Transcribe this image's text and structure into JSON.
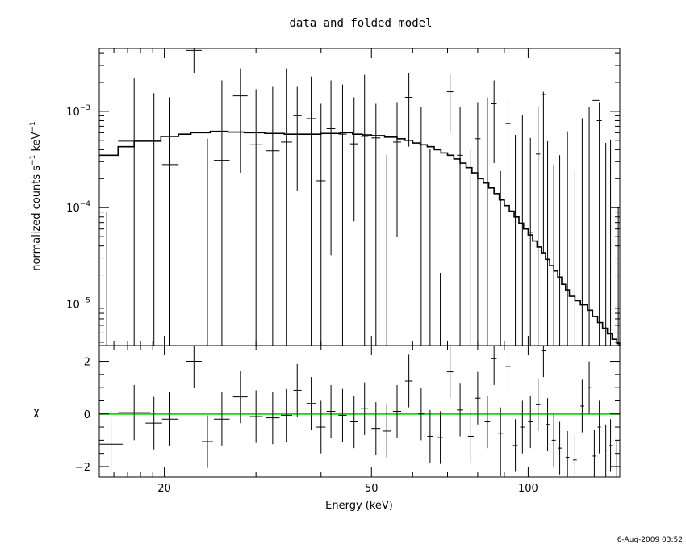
{
  "chart_data": [
    {
      "type": "scatter",
      "panel": "spectrum",
      "title": "data and folded model",
      "ylabel_main": "normalized counts s",
      "ylabel_sup1": "−1",
      "ylabel_mid": " keV",
      "ylabel_sup2": "−1",
      "yscale": "log",
      "ylim": [
        3.7e-06,
        0.0045
      ],
      "xlim": [
        15,
        150
      ],
      "xscale": "log",
      "yticks": [
        {
          "value": 1e-05,
          "base": "10",
          "exp": "−5"
        },
        {
          "value": 0.0001,
          "base": "10",
          "exp": "−4"
        },
        {
          "value": 0.001,
          "base": "10",
          "exp": "−3"
        }
      ],
      "data": [
        {
          "x": 15.5,
          "y": 3.7e-06,
          "xlo": 15.5,
          "xhi": 15.5,
          "yhi": 9e-05
        },
        {
          "x": 17.5,
          "y": 0.00049,
          "xlo": 16.3,
          "xhi": 18.8,
          "yhi": 0.0022
        },
        {
          "x": 19.1,
          "y": 3.7e-06,
          "xlo": 19.1,
          "xhi": 19.1,
          "yhi": 0.00155
        },
        {
          "x": 20.5,
          "y": 0.00028,
          "xlo": 19.8,
          "xhi": 21.3,
          "yhi": 0.0014
        },
        {
          "x": 22.8,
          "y": 0.0043,
          "xlo": 22.0,
          "xhi": 23.6,
          "ylo": 0.0025,
          "yhi": 0.0045
        },
        {
          "x": 24.2,
          "y": 3.7e-06,
          "xlo": 24.2,
          "xhi": 24.2,
          "yhi": 0.00052
        },
        {
          "x": 25.8,
          "y": 0.00031,
          "xlo": 24.9,
          "xhi": 26.7,
          "yhi": 0.0021
        },
        {
          "x": 28.0,
          "y": 0.00145,
          "xlo": 27.1,
          "xhi": 28.9,
          "ylo": 0.00023,
          "yhi": 0.0028
        },
        {
          "x": 30.0,
          "y": 0.00045,
          "xlo": 29.2,
          "xhi": 30.9,
          "yhi": 0.0017
        },
        {
          "x": 32.3,
          "y": 0.00039,
          "xlo": 31.4,
          "xhi": 33.3,
          "yhi": 0.0018
        },
        {
          "x": 34.3,
          "y": 0.00048,
          "xlo": 33.5,
          "xhi": 35.2,
          "yhi": 0.0028
        },
        {
          "x": 36.0,
          "y": 0.0009,
          "xlo": 35.4,
          "xhi": 36.7,
          "ylo": 0.00015,
          "yhi": 0.0018
        },
        {
          "x": 38.3,
          "y": 0.00084,
          "xlo": 37.5,
          "xhi": 39.1,
          "yhi": 0.0023
        },
        {
          "x": 40.0,
          "y": 0.00019,
          "xlo": 39.2,
          "xhi": 40.8,
          "yhi": 0.0012
        },
        {
          "x": 41.8,
          "y": 0.00066,
          "xlo": 41.0,
          "xhi": 42.6,
          "ylo": 3.2e-05,
          "yhi": 0.0021
        },
        {
          "x": 44.0,
          "y": 0.00058,
          "xlo": 43.2,
          "xhi": 44.8,
          "yhi": 0.0019
        },
        {
          "x": 46.3,
          "y": 0.00046,
          "xlo": 45.5,
          "xhi": 47.1,
          "ylo": 7.2e-05,
          "yhi": 0.0014
        },
        {
          "x": 48.5,
          "y": 0.00055,
          "xlo": 47.7,
          "xhi": 49.3,
          "yhi": 0.0024
        },
        {
          "x": 51.0,
          "y": 0.00053,
          "xlo": 50.0,
          "xhi": 52.0,
          "yhi": 0.0012
        },
        {
          "x": 53.5,
          "y": 3.7e-06,
          "xlo": 53.5,
          "xhi": 53.5,
          "yhi": 0.00035
        },
        {
          "x": 56.0,
          "y": 0.00048,
          "xlo": 55.0,
          "xhi": 57.0,
          "ylo": 5e-05,
          "yhi": 0.00125
        },
        {
          "x": 59.0,
          "y": 0.0014,
          "xlo": 58.0,
          "xhi": 60.0,
          "ylo": 0.00043,
          "yhi": 0.0025
        },
        {
          "x": 62.3,
          "y": 3.7e-06,
          "xlo": 62.3,
          "xhi": 62.3,
          "yhi": 0.0011
        },
        {
          "x": 64.8,
          "y": 3.7e-06,
          "xlo": 64.8,
          "xhi": 64.8,
          "yhi": 0.00041
        },
        {
          "x": 67.8,
          "y": 3.7e-06,
          "xlo": 67.8,
          "xhi": 67.8,
          "yhi": 2.1e-05
        },
        {
          "x": 70.8,
          "y": 0.0016,
          "xlo": 69.8,
          "xhi": 71.8,
          "ylo": 0.0006,
          "yhi": 0.0024
        },
        {
          "x": 74.0,
          "y": 0.00035,
          "xlo": 73.0,
          "xhi": 75.0,
          "yhi": 0.0011
        },
        {
          "x": 77.6,
          "y": 3.7e-06,
          "xlo": 77.6,
          "xhi": 77.6,
          "yhi": 0.00041
        },
        {
          "x": 80.0,
          "y": 0.00052,
          "xlo": 79.0,
          "xhi": 81.0,
          "yhi": 0.00125
        },
        {
          "x": 83.5,
          "y": 3.7e-06,
          "xlo": 83.5,
          "xhi": 83.5,
          "yhi": 0.0014
        },
        {
          "x": 86.0,
          "y": 0.0012,
          "xlo": 85.0,
          "xhi": 87.0,
          "ylo": 0.00029,
          "yhi": 0.0021
        },
        {
          "x": 88.5,
          "y": 3.7e-06,
          "xlo": 88.5,
          "xhi": 88.5,
          "yhi": 0.00024
        },
        {
          "x": 91.5,
          "y": 0.00075,
          "xlo": 90.5,
          "xhi": 92.5,
          "ylo": 0.00018,
          "yhi": 0.0013
        },
        {
          "x": 94.5,
          "y": 8.2e-05,
          "xlo": 93.5,
          "xhi": 95.5,
          "yhi": 0.00057
        },
        {
          "x": 97.5,
          "y": 3.7e-06,
          "xlo": 97.5,
          "xhi": 97.5,
          "yhi": 0.00092
        },
        {
          "x": 101.0,
          "y": 5.5e-05,
          "xlo": 100.0,
          "xhi": 102.0,
          "yhi": 0.00053
        },
        {
          "x": 104.5,
          "y": 0.00036,
          "xlo": 103.5,
          "xhi": 105.5,
          "yhi": 0.0011
        },
        {
          "x": 107.0,
          "y": 0.0015,
          "xlo": 106.0,
          "xhi": 108.0,
          "ylo": 3.4e-05,
          "yhi": 0.0016
        },
        {
          "x": 109.0,
          "y": 3.7e-06,
          "xlo": 109.0,
          "xhi": 109.0,
          "yhi": 0.00049
        },
        {
          "x": 112.0,
          "y": 3.7e-06,
          "xlo": 112.0,
          "xhi": 112.0,
          "yhi": 0.00028
        },
        {
          "x": 115.0,
          "y": 3.7e-06,
          "xlo": 115.0,
          "xhi": 115.0,
          "yhi": 0.00035
        },
        {
          "x": 119.0,
          "y": 3.7e-06,
          "xlo": 119.0,
          "xhi": 119.0,
          "yhi": 0.00062
        },
        {
          "x": 123.0,
          "y": 3.7e-06,
          "xlo": 123.0,
          "xhi": 123.0,
          "yhi": 0.00024
        },
        {
          "x": 127.0,
          "y": 3.7e-06,
          "xlo": 127.0,
          "xhi": 127.0,
          "yhi": 0.00085
        },
        {
          "x": 131.0,
          "y": 3.7e-06,
          "xlo": 131.0,
          "xhi": 131.0,
          "yhi": 0.0011
        },
        {
          "x": 135.0,
          "y": 0.0013,
          "xlo": 133.0,
          "xhi": 137.0,
          "yhi": 3.7e-06
        },
        {
          "x": 137.0,
          "y": 0.0008,
          "xlo": 135.5,
          "xhi": 138.5,
          "yhi": 0.00125
        },
        {
          "x": 141.0,
          "y": 3.7e-06,
          "xlo": 141.0,
          "xhi": 141.0,
          "yhi": 0.00047
        },
        {
          "x": 144.0,
          "y": 3.7e-06,
          "xlo": 144.0,
          "xhi": 144.0,
          "yhi": 0.00051
        },
        {
          "x": 149.0,
          "y": 0.0001,
          "xlo": 148.0,
          "xhi": 150.0,
          "ylo": 3.7e-06,
          "yhi": 0.0001
        }
      ],
      "model": [
        [
          15.0,
          0.00035
        ],
        [
          16.3,
          0.00043
        ],
        [
          17.5,
          0.00049
        ],
        [
          18.9,
          0.00049
        ],
        [
          19.7,
          0.00055
        ],
        [
          21.3,
          0.00058
        ],
        [
          22.5,
          0.0006
        ],
        [
          24.5,
          0.00062
        ],
        [
          26.5,
          0.00061
        ],
        [
          28.5,
          0.0006
        ],
        [
          31.2,
          0.00059
        ],
        [
          34.0,
          0.00058
        ],
        [
          37.0,
          0.00058
        ],
        [
          40.0,
          0.00059
        ],
        [
          43.5,
          0.0006
        ],
        [
          46.0,
          0.00058
        ],
        [
          48.0,
          0.00057
        ],
        [
          50.0,
          0.00056
        ],
        [
          53.0,
          0.00054
        ],
        [
          56.0,
          0.00052
        ],
        [
          58.0,
          0.0005
        ],
        [
          60.0,
          0.00047
        ],
        [
          62.0,
          0.00045
        ],
        [
          64.0,
          0.00043
        ],
        [
          66.0,
          0.0004
        ],
        [
          68.0,
          0.00037
        ],
        [
          70.0,
          0.00035
        ],
        [
          72.0,
          0.00032
        ],
        [
          74.0,
          0.00029
        ],
        [
          76.0,
          0.00026
        ],
        [
          78.0,
          0.00023
        ],
        [
          80.0,
          0.0002
        ],
        [
          82.0,
          0.00018
        ],
        [
          84.0,
          0.00016
        ],
        [
          86.0,
          0.00014
        ],
        [
          88.0,
          0.00012
        ],
        [
          90.0,
          0.000105
        ],
        [
          92.0,
          9.2e-05
        ],
        [
          94.0,
          8e-05
        ],
        [
          96.0,
          6.9e-05
        ],
        [
          98.0,
          6e-05
        ],
        [
          100.0,
          5.2e-05
        ],
        [
          102.0,
          4.5e-05
        ],
        [
          104.0,
          3.9e-05
        ],
        [
          106.0,
          3.4e-05
        ],
        [
          108.0,
          2.9e-05
        ],
        [
          110.0,
          2.5e-05
        ],
        [
          112.0,
          2.2e-05
        ],
        [
          114.0,
          1.9e-05
        ],
        [
          116.0,
          1.6e-05
        ],
        [
          118.0,
          1.4e-05
        ],
        [
          120.0,
          1.2e-05
        ],
        [
          123.0,
          1.08e-05
        ],
        [
          126.0,
          9.8e-06
        ],
        [
          130.0,
          8.6e-06
        ],
        [
          133.0,
          7.4e-06
        ],
        [
          136.0,
          6.4e-06
        ],
        [
          139.0,
          5.6e-06
        ],
        [
          142.0,
          4.9e-06
        ],
        [
          145.0,
          4.3e-06
        ],
        [
          148.0,
          3.9e-06
        ],
        [
          150.0,
          3.7e-06
        ]
      ]
    },
    {
      "type": "scatter",
      "panel": "residuals",
      "ylabel": "χ",
      "xlabel": "Energy (keV)",
      "xscale": "log",
      "xlim": [
        15,
        150
      ],
      "ylim": [
        -2.4,
        2.6
      ],
      "yticks": [
        {
          "value": -2,
          "label": "−2"
        },
        {
          "value": 0,
          "label": "0"
        },
        {
          "value": 2,
          "label": "2"
        }
      ],
      "xticks": [
        {
          "value": 20,
          "label": "20"
        },
        {
          "value": 50,
          "label": "50"
        },
        {
          "value": 100,
          "label": "100"
        }
      ],
      "zero_line_color": "#00e000",
      "data": [
        {
          "x": 15.8,
          "y": -1.15,
          "xlo": 15.0,
          "xhi": 16.7,
          "ylo": -2.15,
          "yhi": -0.15
        },
        {
          "x": 17.5,
          "y": 0.05,
          "xlo": 16.3,
          "xhi": 18.8,
          "ylo": -1.0,
          "yhi": 1.1
        },
        {
          "x": 19.1,
          "y": -0.35,
          "xlo": 18.4,
          "xhi": 19.8,
          "ylo": -1.35,
          "yhi": 0.65
        },
        {
          "x": 20.5,
          "y": -0.2,
          "xlo": 19.8,
          "xhi": 21.3,
          "ylo": -1.2,
          "yhi": 0.85
        },
        {
          "x": 22.8,
          "y": 2.0,
          "xlo": 22.0,
          "xhi": 23.6,
          "ylo": 1.0,
          "yhi": 2.6
        },
        {
          "x": 24.2,
          "y": -1.05,
          "xlo": 23.6,
          "xhi": 24.8,
          "ylo": -2.05,
          "yhi": -0.05
        },
        {
          "x": 25.8,
          "y": -0.2,
          "xlo": 24.9,
          "xhi": 26.7,
          "ylo": -1.2,
          "yhi": 0.85
        },
        {
          "x": 28.0,
          "y": 0.65,
          "xlo": 27.1,
          "xhi": 28.9,
          "ylo": -0.35,
          "yhi": 1.65
        },
        {
          "x": 30.0,
          "y": -0.1,
          "xlo": 29.2,
          "xhi": 30.9,
          "ylo": -1.1,
          "yhi": 0.9
        },
        {
          "x": 32.3,
          "y": -0.15,
          "xlo": 31.4,
          "xhi": 33.3,
          "ylo": -1.15,
          "yhi": 0.85
        },
        {
          "x": 34.3,
          "y": -0.05,
          "xlo": 33.5,
          "xhi": 35.2,
          "ylo": -1.05,
          "yhi": 0.95
        },
        {
          "x": 36.0,
          "y": 0.9,
          "xlo": 35.4,
          "xhi": 36.7,
          "ylo": -0.1,
          "yhi": 1.9
        },
        {
          "x": 38.3,
          "y": 0.4,
          "xlo": 37.5,
          "xhi": 39.1,
          "ylo": -0.6,
          "yhi": 1.4
        },
        {
          "x": 40.0,
          "y": -0.5,
          "xlo": 39.2,
          "xhi": 40.8,
          "ylo": -1.5,
          "yhi": 0.5
        },
        {
          "x": 41.8,
          "y": 0.1,
          "xlo": 41.0,
          "xhi": 42.6,
          "ylo": -0.9,
          "yhi": 1.1
        },
        {
          "x": 44.0,
          "y": -0.05,
          "xlo": 43.2,
          "xhi": 44.8,
          "ylo": -1.05,
          "yhi": 0.95
        },
        {
          "x": 46.3,
          "y": -0.3,
          "xlo": 45.5,
          "xhi": 47.1,
          "ylo": -1.3,
          "yhi": 0.7
        },
        {
          "x": 48.5,
          "y": 0.2,
          "xlo": 47.7,
          "xhi": 49.3,
          "ylo": -0.8,
          "yhi": 1.2
        },
        {
          "x": 51.0,
          "y": -0.55,
          "xlo": 50.0,
          "xhi": 52.0,
          "ylo": -1.55,
          "yhi": 0.45
        },
        {
          "x": 53.5,
          "y": -0.65,
          "xlo": 52.5,
          "xhi": 54.5,
          "ylo": -1.65,
          "yhi": 0.35
        },
        {
          "x": 56.0,
          "y": 0.1,
          "xlo": 55.0,
          "xhi": 57.0,
          "ylo": -0.9,
          "yhi": 1.1
        },
        {
          "x": 59.0,
          "y": 1.25,
          "xlo": 58.0,
          "xhi": 60.0,
          "ylo": 0.25,
          "yhi": 2.25
        },
        {
          "x": 62.3,
          "y": 0.0,
          "xlo": 61.5,
          "xhi": 63.1,
          "ylo": -1.0,
          "yhi": 1.0
        },
        {
          "x": 64.8,
          "y": -0.85,
          "xlo": 64.0,
          "xhi": 65.6,
          "ylo": -1.85,
          "yhi": 0.15
        },
        {
          "x": 67.8,
          "y": -0.9,
          "xlo": 67.0,
          "xhi": 68.6,
          "ylo": -1.9,
          "yhi": 0.1
        },
        {
          "x": 70.8,
          "y": 1.6,
          "xlo": 69.8,
          "xhi": 71.8,
          "ylo": 0.6,
          "yhi": 2.6
        },
        {
          "x": 74.0,
          "y": 0.15,
          "xlo": 73.0,
          "xhi": 75.0,
          "ylo": -0.85,
          "yhi": 1.15
        },
        {
          "x": 77.6,
          "y": -0.85,
          "xlo": 76.6,
          "xhi": 78.6,
          "ylo": -1.85,
          "yhi": 0.15
        },
        {
          "x": 80.0,
          "y": 0.6,
          "xlo": 79.0,
          "xhi": 81.0,
          "ylo": -0.4,
          "yhi": 1.6
        },
        {
          "x": 83.5,
          "y": -0.3,
          "xlo": 82.5,
          "xhi": 84.5,
          "ylo": -1.3,
          "yhi": 0.7
        },
        {
          "x": 86.0,
          "y": 2.1,
          "xlo": 85.0,
          "xhi": 87.0,
          "ylo": 1.1,
          "yhi": 2.6
        },
        {
          "x": 88.5,
          "y": -0.75,
          "xlo": 87.5,
          "xhi": 89.5,
          "ylo": -2.35,
          "yhi": 0.25
        },
        {
          "x": 91.5,
          "y": 1.8,
          "xlo": 90.5,
          "xhi": 92.5,
          "ylo": 0.8,
          "yhi": 2.6
        },
        {
          "x": 94.5,
          "y": -1.2,
          "xlo": 93.5,
          "xhi": 95.5,
          "ylo": -2.2,
          "yhi": -0.2
        },
        {
          "x": 97.5,
          "y": -0.5,
          "xlo": 96.5,
          "xhi": 98.5,
          "ylo": -1.5,
          "yhi": 0.5
        },
        {
          "x": 101.0,
          "y": -0.3,
          "xlo": 100.0,
          "xhi": 102.0,
          "ylo": -1.3,
          "yhi": 0.7
        },
        {
          "x": 104.5,
          "y": 0.35,
          "xlo": 103.5,
          "xhi": 105.5,
          "ylo": -0.65,
          "yhi": 1.35
        },
        {
          "x": 107.0,
          "y": 2.4,
          "xlo": 106.0,
          "xhi": 108.0,
          "ylo": 1.4,
          "yhi": 2.6
        },
        {
          "x": 109.0,
          "y": -0.4,
          "xlo": 108.0,
          "xhi": 110.0,
          "ylo": -1.4,
          "yhi": 0.6
        },
        {
          "x": 112.0,
          "y": -1.0,
          "xlo": 111.0,
          "xhi": 113.0,
          "ylo": -2.0,
          "yhi": 0.0
        },
        {
          "x": 115.0,
          "y": -1.3,
          "xlo": 114.0,
          "xhi": 116.0,
          "ylo": -2.3,
          "yhi": -0.3
        },
        {
          "x": 119.0,
          "y": -1.65,
          "xlo": 118.0,
          "xhi": 120.0,
          "ylo": -2.4,
          "yhi": -0.65
        },
        {
          "x": 123.0,
          "y": -1.75,
          "xlo": 122.0,
          "xhi": 124.0,
          "ylo": -2.4,
          "yhi": -0.75
        },
        {
          "x": 127.0,
          "y": 0.3,
          "xlo": 126.0,
          "xhi": 128.0,
          "ylo": -0.7,
          "yhi": 1.3
        },
        {
          "x": 131.0,
          "y": 1.0,
          "xlo": 130.0,
          "xhi": 132.0,
          "ylo": 0.0,
          "yhi": 2.0
        },
        {
          "x": 134.0,
          "y": -1.6,
          "xlo": 133.0,
          "xhi": 135.0,
          "ylo": -2.4,
          "yhi": -0.6
        },
        {
          "x": 137.0,
          "y": -0.5,
          "xlo": 136.0,
          "xhi": 138.0,
          "ylo": -1.5,
          "yhi": 0.5
        },
        {
          "x": 141.0,
          "y": -1.4,
          "xlo": 140.0,
          "xhi": 142.0,
          "ylo": -2.4,
          "yhi": -0.4
        },
        {
          "x": 144.0,
          "y": -1.2,
          "xlo": 143.0,
          "xhi": 145.0,
          "ylo": -2.2,
          "yhi": -0.2
        },
        {
          "x": 148.0,
          "y": -2.0,
          "xlo": 147.0,
          "xhi": 149.0,
          "ylo": -2.4,
          "yhi": -1.0
        }
      ]
    }
  ],
  "footer": {
    "timestamp": "6-Aug-2009 03:52"
  }
}
